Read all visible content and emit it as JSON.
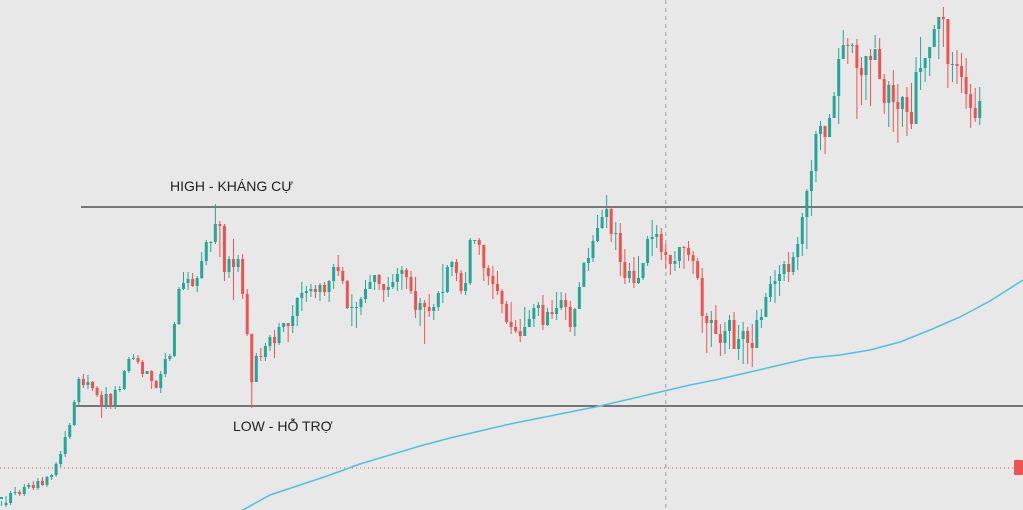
{
  "chart_data": {
    "type": "candlestick",
    "background": "#e8e8e8",
    "colors": {
      "up": "#26a69a",
      "down": "#ef5350",
      "moving_average": "#4fc3dc",
      "level_line": "#333333",
      "dotted_line": "#ef5350",
      "crosshair": "#9e9e9e"
    },
    "ylim": [
      0,
      510
    ],
    "levels": [
      {
        "name": "high",
        "label": "HIGH - KHÁNG CỰ",
        "value": 303
      },
      {
        "name": "low",
        "label": "LOW - HỖ TRỢ",
        "value": 104
      }
    ],
    "dotted_level": 42,
    "crosshair_index": 146,
    "candles": [
      [
        11,
        13,
        9,
        4
      ],
      [
        5,
        7,
        14,
        3
      ],
      [
        7,
        17,
        19,
        5
      ],
      [
        17,
        18,
        23,
        15
      ],
      [
        18,
        16,
        20,
        14
      ],
      [
        16,
        23,
        26,
        14
      ],
      [
        23,
        25,
        27,
        21
      ],
      [
        25,
        22,
        29,
        20
      ],
      [
        22,
        29,
        32,
        20
      ],
      [
        29,
        25,
        33,
        24
      ],
      [
        25,
        33,
        34,
        23
      ],
      [
        33,
        35,
        36,
        30
      ],
      [
        35,
        46,
        48,
        33
      ],
      [
        46,
        56,
        59,
        43
      ],
      [
        56,
        73,
        79,
        53
      ],
      [
        73,
        85,
        87,
        71
      ],
      [
        85,
        108,
        110,
        84
      ],
      [
        108,
        131,
        133,
        104
      ],
      [
        131,
        125,
        136,
        122
      ],
      [
        125,
        128,
        135,
        121
      ],
      [
        128,
        122,
        129,
        119
      ],
      [
        122,
        115,
        124,
        113
      ],
      [
        115,
        104,
        119,
        92
      ],
      [
        104,
        116,
        123,
        101
      ],
      [
        116,
        104,
        117,
        101
      ],
      [
        104,
        120,
        124,
        101
      ],
      [
        120,
        121,
        124,
        118
      ],
      [
        121,
        139,
        140,
        120
      ],
      [
        139,
        151,
        153,
        137
      ],
      [
        151,
        152,
        156,
        150
      ],
      [
        152,
        148,
        155,
        146
      ],
      [
        148,
        136,
        150,
        133
      ],
      [
        136,
        139,
        139,
        136
      ],
      [
        139,
        129,
        140,
        121
      ],
      [
        129,
        122,
        130,
        122
      ],
      [
        122,
        136,
        139,
        117
      ],
      [
        136,
        151,
        157,
        133
      ],
      [
        151,
        154,
        156,
        149
      ],
      [
        154,
        186,
        188,
        153
      ],
      [
        186,
        221,
        223,
        185
      ],
      [
        221,
        227,
        238,
        220
      ],
      [
        227,
        231,
        238,
        220
      ],
      [
        231,
        224,
        237,
        223
      ],
      [
        224,
        232,
        234,
        218
      ],
      [
        232,
        249,
        258,
        231
      ],
      [
        249,
        268,
        270,
        245
      ],
      [
        268,
        268,
        269,
        258
      ],
      [
        268,
        286,
        306,
        266
      ],
      [
        286,
        284,
        289,
        253
      ],
      [
        284,
        238,
        286,
        229
      ],
      [
        238,
        251,
        254,
        232
      ],
      [
        251,
        243,
        271,
        210
      ],
      [
        243,
        251,
        255,
        238
      ],
      [
        251,
        216,
        256,
        211
      ],
      [
        216,
        176,
        221,
        174
      ],
      [
        176,
        128,
        149,
        102
      ],
      [
        128,
        154,
        157,
        129
      ],
      [
        154,
        153,
        162,
        149
      ],
      [
        153,
        164,
        167,
        149
      ],
      [
        164,
        173,
        175,
        159
      ],
      [
        173,
        167,
        180,
        152
      ],
      [
        167,
        183,
        187,
        165
      ],
      [
        183,
        187,
        187,
        178
      ],
      [
        187,
        184,
        187,
        168
      ],
      [
        184,
        194,
        205,
        177
      ],
      [
        194,
        212,
        213,
        184
      ],
      [
        212,
        217,
        228,
        199
      ],
      [
        217,
        219,
        224,
        208
      ],
      [
        219,
        221,
        226,
        213
      ],
      [
        221,
        218,
        225,
        212
      ],
      [
        218,
        225,
        227,
        209
      ],
      [
        225,
        218,
        228,
        214
      ],
      [
        218,
        229,
        230,
        208
      ],
      [
        229,
        243,
        246,
        221
      ],
      [
        243,
        239,
        255,
        234
      ],
      [
        239,
        229,
        243,
        226
      ],
      [
        229,
        202,
        230,
        201
      ],
      [
        202,
        203,
        216,
        184
      ],
      [
        203,
        203,
        208,
        182
      ],
      [
        203,
        211,
        213,
        195
      ],
      [
        211,
        221,
        230,
        207
      ],
      [
        221,
        228,
        235,
        225
      ],
      [
        228,
        235,
        235,
        220
      ],
      [
        235,
        226,
        236,
        220
      ],
      [
        226,
        220,
        226,
        208
      ],
      [
        220,
        223,
        233,
        213
      ],
      [
        223,
        228,
        236,
        221
      ],
      [
        228,
        236,
        242,
        219
      ],
      [
        236,
        240,
        244,
        220
      ],
      [
        240,
        233,
        242,
        221
      ],
      [
        233,
        219,
        239,
        216
      ],
      [
        219,
        200,
        233,
        192
      ],
      [
        200,
        207,
        212,
        184
      ],
      [
        207,
        203,
        210,
        166
      ],
      [
        203,
        199,
        216,
        193
      ],
      [
        199,
        203,
        206,
        190
      ],
      [
        203,
        217,
        219,
        199
      ],
      [
        217,
        218,
        246,
        207
      ],
      [
        218,
        243,
        245,
        217
      ],
      [
        243,
        248,
        249,
        234
      ],
      [
        248,
        237,
        251,
        229
      ],
      [
        237,
        219,
        240,
        216
      ],
      [
        219,
        227,
        238,
        215
      ],
      [
        227,
        270,
        272,
        225
      ],
      [
        270,
        270,
        270,
        266
      ],
      [
        270,
        265,
        272,
        255
      ],
      [
        265,
        242,
        258,
        229
      ],
      [
        242,
        234,
        245,
        225
      ],
      [
        234,
        226,
        244,
        211
      ],
      [
        226,
        219,
        239,
        215
      ],
      [
        219,
        206,
        221,
        197
      ],
      [
        206,
        188,
        209,
        186
      ],
      [
        188,
        183,
        208,
        176
      ],
      [
        183,
        179,
        190,
        177
      ],
      [
        179,
        174,
        191,
        168
      ],
      [
        174,
        183,
        203,
        182
      ],
      [
        183,
        191,
        200,
        187
      ],
      [
        191,
        202,
        206,
        183
      ],
      [
        202,
        205,
        208,
        194
      ],
      [
        205,
        185,
        215,
        180
      ],
      [
        185,
        198,
        202,
        184
      ],
      [
        198,
        196,
        210,
        191
      ],
      [
        196,
        202,
        218,
        190
      ],
      [
        202,
        210,
        218,
        200
      ],
      [
        210,
        203,
        217,
        190
      ],
      [
        203,
        183,
        209,
        178
      ],
      [
        183,
        201,
        202,
        174
      ],
      [
        201,
        223,
        228,
        201
      ],
      [
        223,
        247,
        248,
        223
      ],
      [
        247,
        252,
        262,
        239
      ],
      [
        252,
        269,
        275,
        248
      ],
      [
        269,
        282,
        295,
        268
      ],
      [
        282,
        293,
        300,
        281
      ],
      [
        293,
        301,
        315,
        282
      ],
      [
        301,
        276,
        304,
        268
      ],
      [
        276,
        277,
        288,
        260
      ],
      [
        277,
        248,
        287,
        234
      ],
      [
        248,
        232,
        261,
        226
      ],
      [
        232,
        239,
        247,
        227
      ],
      [
        239,
        227,
        253,
        222
      ],
      [
        227,
        232,
        254,
        226
      ],
      [
        232,
        247,
        247,
        230
      ],
      [
        247,
        271,
        274,
        244
      ],
      [
        271,
        273,
        290,
        254
      ],
      [
        273,
        276,
        285,
        262
      ],
      [
        276,
        258,
        282,
        250
      ],
      [
        258,
        255,
        266,
        241
      ],
      [
        255,
        246,
        253,
        235
      ],
      [
        246,
        249,
        259,
        239
      ],
      [
        249,
        263,
        263,
        242
      ],
      [
        263,
        262,
        264,
        241
      ],
      [
        262,
        255,
        269,
        249
      ],
      [
        255,
        249,
        259,
        236
      ],
      [
        249,
        232,
        252,
        230
      ],
      [
        232,
        194,
        242,
        177
      ],
      [
        194,
        187,
        197,
        157
      ],
      [
        187,
        190,
        199,
        163
      ],
      [
        190,
        176,
        205,
        182
      ],
      [
        176,
        167,
        186,
        154
      ],
      [
        167,
        179,
        188,
        156
      ],
      [
        179,
        190,
        195,
        161
      ],
      [
        190,
        161,
        198,
        161
      ],
      [
        161,
        171,
        185,
        150
      ],
      [
        171,
        179,
        188,
        146
      ],
      [
        179,
        167,
        183,
        146
      ],
      [
        167,
        162,
        186,
        143
      ],
      [
        162,
        190,
        200,
        164
      ],
      [
        190,
        193,
        201,
        182
      ],
      [
        193,
        213,
        217,
        193
      ],
      [
        213,
        226,
        234,
        208
      ],
      [
        226,
        229,
        240,
        207
      ],
      [
        229,
        236,
        245,
        214
      ],
      [
        236,
        246,
        249,
        229
      ],
      [
        246,
        238,
        258,
        228
      ],
      [
        238,
        253,
        258,
        235
      ],
      [
        253,
        266,
        273,
        240
      ],
      [
        266,
        293,
        297,
        254
      ],
      [
        293,
        319,
        321,
        261
      ],
      [
        319,
        339,
        350,
        294
      ],
      [
        339,
        376,
        379,
        328
      ],
      [
        376,
        384,
        389,
        360
      ],
      [
        384,
        373,
        384,
        356
      ],
      [
        373,
        392,
        396,
        378
      ],
      [
        392,
        414,
        418,
        395
      ],
      [
        414,
        451,
        462,
        386
      ],
      [
        451,
        465,
        480,
        460
      ],
      [
        465,
        464,
        472,
        446
      ],
      [
        464,
        465,
        467,
        457
      ],
      [
        465,
        442,
        471,
        391
      ],
      [
        442,
        435,
        453,
        405
      ],
      [
        435,
        454,
        452,
        410
      ],
      [
        454,
        450,
        461,
        404
      ],
      [
        450,
        461,
        475,
        462
      ],
      [
        461,
        431,
        472,
        438
      ],
      [
        431,
        407,
        436,
        396
      ],
      [
        407,
        425,
        429,
        383
      ],
      [
        425,
        408,
        440,
        378
      ],
      [
        408,
        401,
        426,
        367
      ],
      [
        401,
        413,
        414,
        383
      ],
      [
        413,
        398,
        423,
        374
      ],
      [
        398,
        386,
        427,
        381
      ],
      [
        386,
        438,
        453,
        408
      ],
      [
        438,
        442,
        473,
        420
      ],
      [
        442,
        452,
        449,
        428
      ],
      [
        452,
        463,
        457,
        434
      ],
      [
        463,
        481,
        485,
        465
      ],
      [
        481,
        493,
        491,
        451
      ],
      [
        493,
        491,
        503,
        463
      ],
      [
        491,
        446,
        468,
        422
      ],
      [
        446,
        446,
        458,
        428
      ],
      [
        446,
        444,
        460,
        426
      ],
      [
        444,
        433,
        457,
        417
      ],
      [
        433,
        416,
        452,
        401
      ],
      [
        416,
        402,
        426,
        382
      ],
      [
        402,
        392,
        422,
        388
      ],
      [
        392,
        409,
        423,
        385
      ]
    ],
    "moving_average": [
      [
        241,
        -1
      ],
      [
        270,
        15
      ],
      [
        300,
        25
      ],
      [
        330,
        35
      ],
      [
        360,
        46
      ],
      [
        390,
        55
      ],
      [
        420,
        64
      ],
      [
        450,
        72
      ],
      [
        480,
        79
      ],
      [
        510,
        86
      ],
      [
        540,
        92
      ],
      [
        570,
        98
      ],
      [
        600,
        104
      ],
      [
        630,
        111
      ],
      [
        660,
        118
      ],
      [
        690,
        125
      ],
      [
        720,
        131
      ],
      [
        750,
        138
      ],
      [
        780,
        145
      ],
      [
        810,
        152
      ],
      [
        840,
        155
      ],
      [
        870,
        160
      ],
      [
        900,
        168
      ],
      [
        930,
        180
      ],
      [
        960,
        193
      ],
      [
        990,
        209
      ],
      [
        1023,
        230
      ]
    ],
    "xlabel": "",
    "ylabel": "",
    "grid": false,
    "legend": "none"
  },
  "price_badge": {
    "color": "#ef5350"
  }
}
